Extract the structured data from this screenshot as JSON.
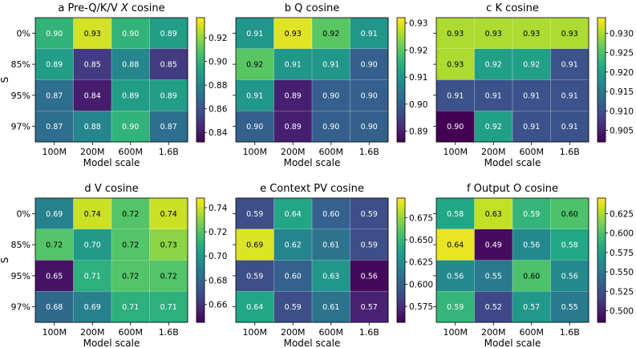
{
  "chart_data": [
    {
      "type": "heatmap",
      "panel_letter": "a",
      "title_prefix": "Pre-Q/K/V ",
      "title_italic": "X",
      "title_suffix": " cosine",
      "xlabel": "Model scale",
      "ylabel": "S",
      "x_categories": [
        "100M",
        "200M",
        "600M",
        "1.6B"
      ],
      "y_categories": [
        "0%",
        "85%",
        "95%",
        "97%"
      ],
      "values": [
        [
          0.9,
          0.93,
          0.9,
          0.89
        ],
        [
          0.89,
          0.85,
          0.88,
          0.85
        ],
        [
          0.87,
          0.84,
          0.89,
          0.89
        ],
        [
          0.87,
          0.88,
          0.9,
          0.87
        ]
      ],
      "value_labels": [
        [
          "0.90",
          "0.93",
          "0.90",
          "0.89"
        ],
        [
          "0.89",
          "0.85",
          "0.88",
          "0.85"
        ],
        [
          "0.87",
          "0.84",
          "0.89",
          "0.89"
        ],
        [
          "0.87",
          "0.88",
          "0.90",
          "0.87"
        ]
      ],
      "color_range": [
        0.832,
        0.937
      ],
      "colorbar_ticks": [
        0.84,
        0.86,
        0.88,
        0.9,
        0.92
      ],
      "colorbar_tick_labels": [
        "0.84",
        "0.86",
        "0.88",
        "0.90",
        "0.92"
      ]
    },
    {
      "type": "heatmap",
      "panel_letter": "b",
      "title_prefix": "Q cosine",
      "title_italic": "",
      "title_suffix": "",
      "xlabel": "Model scale",
      "ylabel": "",
      "x_categories": [
        "100M",
        "200M",
        "600M",
        "1.6B"
      ],
      "y_categories": [
        "0%",
        "85%",
        "95%",
        "97%"
      ],
      "values": [
        [
          0.91,
          0.93,
          0.92,
          0.91
        ],
        [
          0.92,
          0.91,
          0.91,
          0.9
        ],
        [
          0.91,
          0.89,
          0.9,
          0.9
        ],
        [
          0.9,
          0.89,
          0.9,
          0.9
        ]
      ],
      "value_labels": [
        [
          "0.91",
          "0.93",
          "0.92",
          "0.91"
        ],
        [
          "0.92",
          "0.91",
          "0.91",
          "0.90"
        ],
        [
          "0.91",
          "0.89",
          "0.90",
          "0.90"
        ],
        [
          "0.90",
          "0.89",
          "0.90",
          "0.90"
        ]
      ],
      "color_range": [
        0.886,
        0.932
      ],
      "colorbar_ticks": [
        0.89,
        0.9,
        0.91,
        0.92,
        0.93
      ],
      "colorbar_tick_labels": [
        "0.89",
        "0.90",
        "0.91",
        "0.92",
        "0.93"
      ]
    },
    {
      "type": "heatmap",
      "panel_letter": "c",
      "title_prefix": "K cosine",
      "title_italic": "",
      "title_suffix": "",
      "xlabel": "Model scale",
      "ylabel": "",
      "x_categories": [
        "100M",
        "200M",
        "600M",
        "1.6B"
      ],
      "y_categories": [
        "0%",
        "85%",
        "95%",
        "97%"
      ],
      "values": [
        [
          0.93,
          0.93,
          0.93,
          0.93
        ],
        [
          0.93,
          0.92,
          0.92,
          0.91
        ],
        [
          0.91,
          0.91,
          0.91,
          0.91
        ],
        [
          0.9,
          0.92,
          0.91,
          0.91
        ]
      ],
      "value_labels": [
        [
          "0.93",
          "0.93",
          "0.93",
          "0.93"
        ],
        [
          "0.93",
          "0.92",
          "0.92",
          "0.91"
        ],
        [
          "0.91",
          "0.91",
          "0.91",
          "0.91"
        ],
        [
          "0.90",
          "0.92",
          "0.91",
          "0.91"
        ]
      ],
      "color_range": [
        0.902,
        0.934
      ],
      "colorbar_ticks": [
        0.905,
        0.91,
        0.915,
        0.92,
        0.925,
        0.93
      ],
      "colorbar_tick_labels": [
        "0.905",
        "0.910",
        "0.915",
        "0.920",
        "0.925",
        "0.930"
      ]
    },
    {
      "type": "heatmap",
      "panel_letter": "d",
      "title_prefix": "V cosine",
      "title_italic": "",
      "title_suffix": "",
      "xlabel": "Model scale",
      "ylabel": "S",
      "x_categories": [
        "100M",
        "200M",
        "600M",
        "1.6B"
      ],
      "y_categories": [
        "0%",
        "85%",
        "95%",
        "97%"
      ],
      "values": [
        [
          0.69,
          0.74,
          0.72,
          0.74
        ],
        [
          0.72,
          0.7,
          0.72,
          0.73
        ],
        [
          0.65,
          0.71,
          0.72,
          0.72
        ],
        [
          0.68,
          0.69,
          0.71,
          0.71
        ]
      ],
      "value_labels": [
        [
          "0.69",
          "0.74",
          "0.72",
          "0.74"
        ],
        [
          "0.72",
          "0.70",
          "0.72",
          "0.73"
        ],
        [
          "0.65",
          "0.71",
          "0.72",
          "0.72"
        ],
        [
          "0.68",
          "0.69",
          "0.71",
          "0.71"
        ]
      ],
      "color_range": [
        0.645,
        0.748
      ],
      "colorbar_ticks": [
        0.66,
        0.68,
        0.7,
        0.72,
        0.74
      ],
      "colorbar_tick_labels": [
        "0.66",
        "0.68",
        "0.70",
        "0.72",
        "0.74"
      ]
    },
    {
      "type": "heatmap",
      "panel_letter": "e",
      "title_prefix": "Context PV cosine",
      "title_italic": "",
      "title_suffix": "",
      "xlabel": "Model scale",
      "ylabel": "",
      "x_categories": [
        "100M",
        "200M",
        "600M",
        "1.6B"
      ],
      "y_categories": [
        "0%",
        "85%",
        "95%",
        "97%"
      ],
      "values": [
        [
          0.59,
          0.64,
          0.6,
          0.59
        ],
        [
          0.69,
          0.62,
          0.61,
          0.59
        ],
        [
          0.59,
          0.6,
          0.63,
          0.56
        ],
        [
          0.64,
          0.59,
          0.61,
          0.57
        ]
      ],
      "value_labels": [
        [
          "0.59",
          "0.64",
          "0.60",
          "0.59"
        ],
        [
          "0.69",
          "0.62",
          "0.61",
          "0.59"
        ],
        [
          "0.59",
          "0.60",
          "0.63",
          "0.56"
        ],
        [
          "0.64",
          "0.59",
          "0.61",
          "0.57"
        ]
      ],
      "color_range": [
        0.557,
        0.697
      ],
      "colorbar_ticks": [
        0.575,
        0.6,
        0.625,
        0.65,
        0.675
      ],
      "colorbar_tick_labels": [
        "0.575",
        "0.600",
        "0.625",
        "0.650",
        "0.675"
      ]
    },
    {
      "type": "heatmap",
      "panel_letter": "f",
      "title_prefix": "Output O cosine",
      "title_italic": "",
      "title_suffix": "",
      "xlabel": "Model scale",
      "ylabel": "",
      "x_categories": [
        "100M",
        "200M",
        "600M",
        "1.6B"
      ],
      "y_categories": [
        "0%",
        "85%",
        "95%",
        "97%"
      ],
      "values": [
        [
          0.58,
          0.63,
          0.59,
          0.6
        ],
        [
          0.64,
          0.49,
          0.56,
          0.58
        ],
        [
          0.56,
          0.55,
          0.6,
          0.56
        ],
        [
          0.59,
          0.52,
          0.57,
          0.55
        ]
      ],
      "value_labels": [
        [
          "0.58",
          "0.63",
          "0.59",
          "0.60"
        ],
        [
          "0.64",
          "0.49",
          "0.56",
          "0.58"
        ],
        [
          "0.56",
          "0.55",
          "0.60",
          "0.56"
        ],
        [
          "0.59",
          "0.52",
          "0.57",
          "0.55"
        ]
      ],
      "color_range": [
        0.485,
        0.645
      ],
      "colorbar_ticks": [
        0.5,
        0.525,
        0.55,
        0.575,
        0.6,
        0.625
      ],
      "colorbar_tick_labels": [
        "0.500",
        "0.525",
        "0.550",
        "0.575",
        "0.600",
        "0.625"
      ]
    }
  ]
}
